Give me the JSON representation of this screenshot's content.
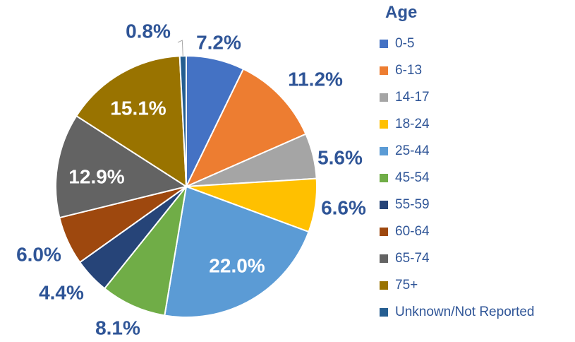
{
  "chart_data": {
    "type": "pie",
    "legend_title": "Age",
    "legend_position": "right",
    "categories": [
      "0-5",
      "6-13",
      "14-17",
      "18-24",
      "25-44",
      "45-54",
      "55-59",
      "60-64",
      "65-74",
      "75+",
      "Unknown/Not Reported"
    ],
    "values": [
      7.2,
      11.2,
      5.6,
      6.6,
      22.0,
      8.1,
      4.4,
      6.0,
      12.9,
      15.1,
      0.8
    ],
    "labels": [
      "7.2%",
      "11.2%",
      "5.6%",
      "6.6%",
      "22.0%",
      "8.1%",
      "4.4%",
      "6.0%",
      "12.9%",
      "15.1%",
      "0.8%"
    ],
    "colors": [
      "#4472C4",
      "#ED7D31",
      "#A5A5A5",
      "#FFC000",
      "#5B9BD5",
      "#70AD47",
      "#264478",
      "#9E480E",
      "#636363",
      "#997300",
      "#255E91"
    ],
    "label_color_outside": "#2F5597",
    "label_color_inside": "#FFFFFF"
  }
}
